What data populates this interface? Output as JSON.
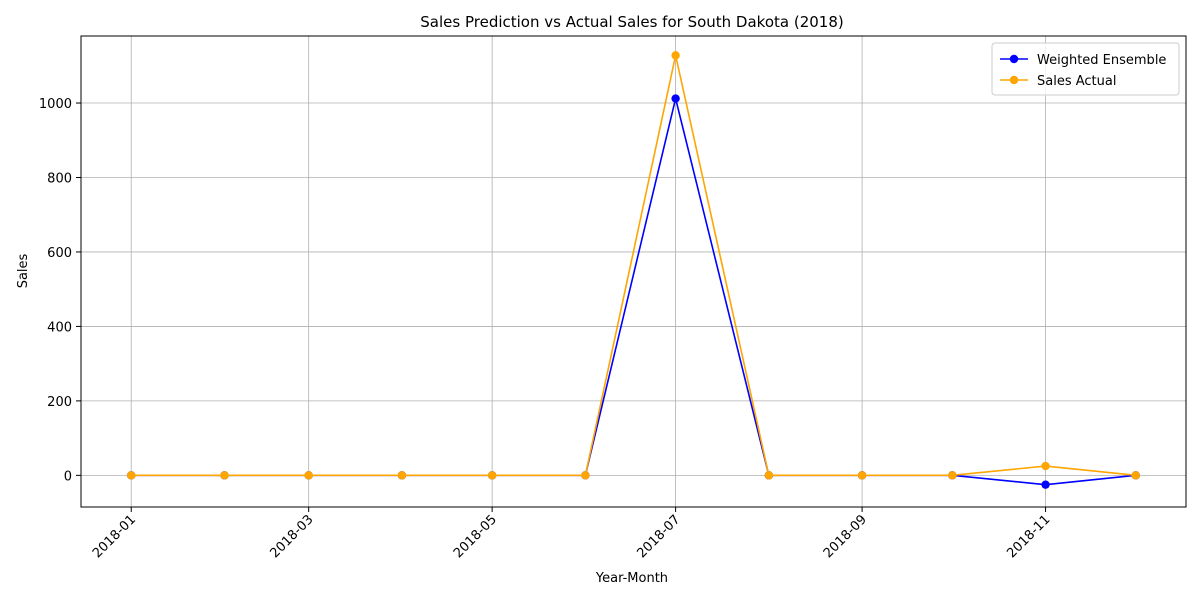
{
  "chart_data": {
    "type": "line",
    "title": "Sales Prediction vs Actual Sales for South Dakota (2018)",
    "xlabel": "Year-Month",
    "ylabel": "Sales",
    "x": [
      "2018-01",
      "2018-02",
      "2018-03",
      "2018-04",
      "2018-05",
      "2018-06",
      "2018-07",
      "2018-08",
      "2018-09",
      "2018-10",
      "2018-11",
      "2018-12"
    ],
    "x_tick_labels": [
      "2018-01",
      "2018-03",
      "2018-05",
      "2018-07",
      "2018-09",
      "2018-11"
    ],
    "y_ticks": [
      0,
      200,
      400,
      600,
      800,
      1000
    ],
    "ylim": [
      -85,
      1180
    ],
    "grid": true,
    "legend_position": "top-right",
    "series": [
      {
        "name": "Weighted Ensemble",
        "color": "#0000ff",
        "values": [
          0,
          0,
          0,
          0,
          0,
          0,
          1012,
          0,
          0,
          0,
          -25,
          0
        ]
      },
      {
        "name": "Sales Actual",
        "color": "#ffa500",
        "values": [
          0,
          0,
          0,
          0,
          0,
          0,
          1128,
          0,
          0,
          0,
          25,
          0
        ]
      }
    ]
  }
}
